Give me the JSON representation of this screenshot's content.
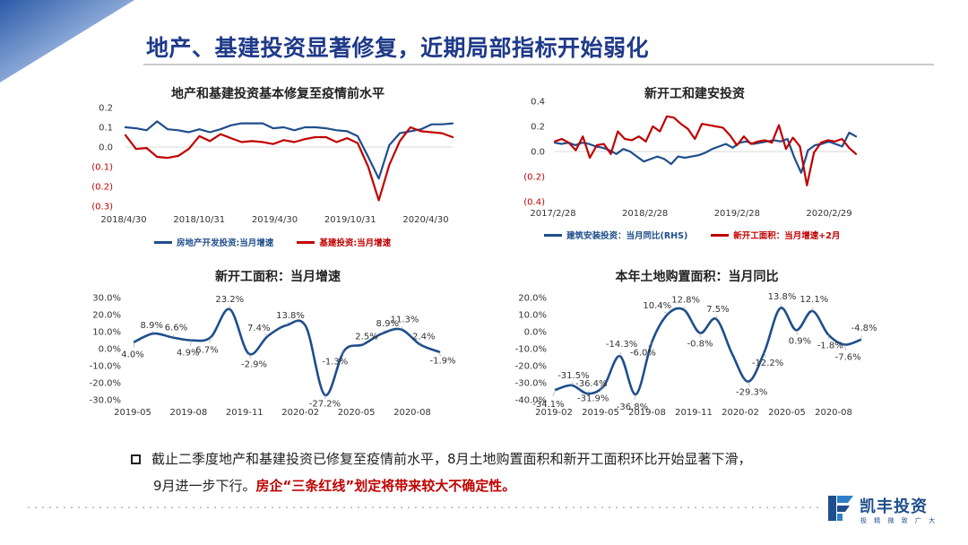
{
  "slide": {
    "title": "地产、基建投资显著修复，近期局部指标开始弱化",
    "note_line1": "截止二季度地产和基建投资已修复至疫情前水平，8月土地购置面积和新开工面积环比开始显著下滑，",
    "note_line2_normal": "9月进一步下行。",
    "note_line2_red": "房企“三条红线”划定将带来较大不确定性。"
  },
  "logo": {
    "name": "凯丰投资",
    "sub": "极 精 微 致 广 大"
  },
  "colors": {
    "blue": "#1f4e8c",
    "red": "#c00000",
    "title": "#1f3a8a"
  },
  "chart_data": [
    {
      "type": "line",
      "title": "地产和基建投资基本修复至疫情前水平",
      "y_ticks": [
        "0.2",
        "0.1",
        "0.0",
        "(0.1)",
        "(0.2)",
        "(0.3)"
      ],
      "ylim": [
        -0.3,
        0.2
      ],
      "x_ticks": [
        "2018/4/30",
        "2018/10/31",
        "2019/4/30",
        "2019/10/31",
        "2020/4/30"
      ],
      "grid": "none",
      "legend": "bottom",
      "series": [
        {
          "name": "房地产开发投资:当月增速",
          "color": "#1f4e8c",
          "values": [
            0.1,
            0.095,
            0.085,
            0.13,
            0.09,
            0.085,
            0.075,
            0.09,
            0.075,
            0.09,
            0.11,
            0.12,
            0.12,
            0.12,
            0.095,
            0.1,
            0.085,
            0.1,
            0.1,
            0.095,
            0.085,
            0.08,
            0.055,
            -0.05,
            -0.16,
            0.01,
            0.07,
            0.08,
            0.09,
            0.115,
            0.115,
            0.12
          ]
        },
        {
          "name": "基建投资:当月增速",
          "color": "#c00000",
          "values": [
            0.06,
            -0.01,
            -0.005,
            -0.05,
            -0.055,
            -0.045,
            -0.01,
            0.055,
            0.03,
            0.065,
            0.045,
            0.025,
            0.03,
            0.025,
            0.015,
            0.035,
            0.025,
            0.04,
            0.05,
            0.05,
            0.025,
            0.045,
            0.02,
            -0.1,
            -0.27,
            -0.09,
            0.03,
            0.1,
            0.08,
            0.075,
            0.07,
            0.05
          ]
        }
      ]
    },
    {
      "type": "line",
      "title": "新开工和建安投资",
      "y_ticks": [
        "0.4",
        "0.2",
        "0.0",
        "(0.2)",
        "(0.4)"
      ],
      "ylim": [
        -0.4,
        0.4
      ],
      "x_ticks": [
        "2017/2/28",
        "2018/2/28",
        "2019/2/28",
        "2020/2/29"
      ],
      "grid": "none",
      "legend": "bottom",
      "series": [
        {
          "name": "建筑安装投资：当月同比(RHS)",
          "color": "#1f4e8c",
          "values": [
            0.07,
            0.06,
            0.07,
            0.05,
            0.07,
            0.06,
            0.04,
            0.03,
            0.01,
            -0.02,
            0.02,
            0.0,
            -0.04,
            -0.08,
            -0.06,
            -0.04,
            -0.06,
            -0.1,
            -0.04,
            -0.05,
            -0.04,
            -0.03,
            -0.01,
            0.02,
            0.04,
            0.06,
            0.03,
            0.07,
            0.08,
            0.06,
            0.07,
            0.08,
            0.09,
            0.08,
            0.1,
            -0.05,
            -0.17,
            0.01,
            0.05,
            0.06,
            0.08,
            0.06,
            0.04,
            0.15,
            0.12
          ]
        },
        {
          "name": "新开工面积：当月增速+2月",
          "color": "#c00000",
          "values": [
            0.08,
            0.1,
            0.07,
            0.01,
            0.12,
            -0.05,
            0.05,
            0.06,
            -0.02,
            0.16,
            0.1,
            0.09,
            0.12,
            0.08,
            0.2,
            0.16,
            0.28,
            0.27,
            0.22,
            0.18,
            0.1,
            0.22,
            0.21,
            0.2,
            0.19,
            0.13,
            0.05,
            0.12,
            0.06,
            0.08,
            0.09,
            0.07,
            0.21,
            0.02,
            0.11,
            0.04,
            -0.27,
            -0.01,
            0.07,
            0.09,
            0.08,
            0.1,
            0.03,
            -0.02
          ]
        }
      ]
    },
    {
      "type": "line",
      "title": "新开工面积：当月增速",
      "y_ticks": [
        "30.0%",
        "20.0%",
        "10.0%",
        "0.0%",
        "-10.0%",
        "-20.0%",
        "-30.0%"
      ],
      "ylim": [
        -30,
        30
      ],
      "x_ticks": [
        "2019-05",
        "2019-08",
        "2019-11",
        "2020-02",
        "2020-05",
        "2020-08"
      ],
      "grid": "none",
      "legend": "none",
      "series": [
        {
          "name": "",
          "color": "#1f4e8c",
          "values": [
            4.0,
            8.9,
            6.6,
            4.9,
            6.7,
            23.2,
            -2.9,
            7.4,
            13.8,
            13.0,
            -27.2,
            -1.3,
            2.5,
            8.9,
            11.3,
            2.4,
            -1.9
          ]
        }
      ],
      "data_labels": [
        "4.0%",
        "8.9%",
        "6.6%",
        "4.9%",
        "6.7%",
        "23.2%",
        "-2.9%",
        "7.4%",
        "13.8%",
        "-27.2%",
        "-1.3%",
        "2.5%",
        "8.9%",
        "11.3%",
        "2.4%",
        "-1.9%"
      ]
    },
    {
      "type": "line",
      "title": "本年土地购置面积：当月同比",
      "y_ticks": [
        "20.0%",
        "10.0%",
        "0.0%",
        "-10.0%",
        "-20.0%",
        "-30.0%",
        "-40.0%"
      ],
      "ylim": [
        -40,
        20
      ],
      "x_ticks": [
        "2019-02",
        "2019-05",
        "2019-08",
        "2019-11",
        "2020-02",
        "2020-05",
        "2020-08"
      ],
      "grid": "none",
      "legend": "none",
      "series": [
        {
          "name": "",
          "color": "#1f4e8c",
          "values": [
            -34.1,
            -31.5,
            -36.4,
            -31.9,
            -14.3,
            -36.8,
            -6.0,
            10.4,
            12.8,
            -0.8,
            7.5,
            -13.0,
            -29.3,
            -12.2,
            13.8,
            0.9,
            12.1,
            -1.8,
            -7.6,
            -4.8
          ]
        }
      ],
      "data_labels": [
        "-34.1%",
        "-31.5%",
        "-36.4%",
        "-31.9%",
        "-14.3%",
        "-36.8%",
        "-6.0%",
        "10.4%",
        "12.8%",
        "-0.8%",
        "7.5%",
        "-29.3%",
        "-12.2%",
        "13.8%",
        "0.9%",
        "12.1%",
        "-1.8%",
        "-7.6%",
        "-4.8%"
      ]
    }
  ]
}
